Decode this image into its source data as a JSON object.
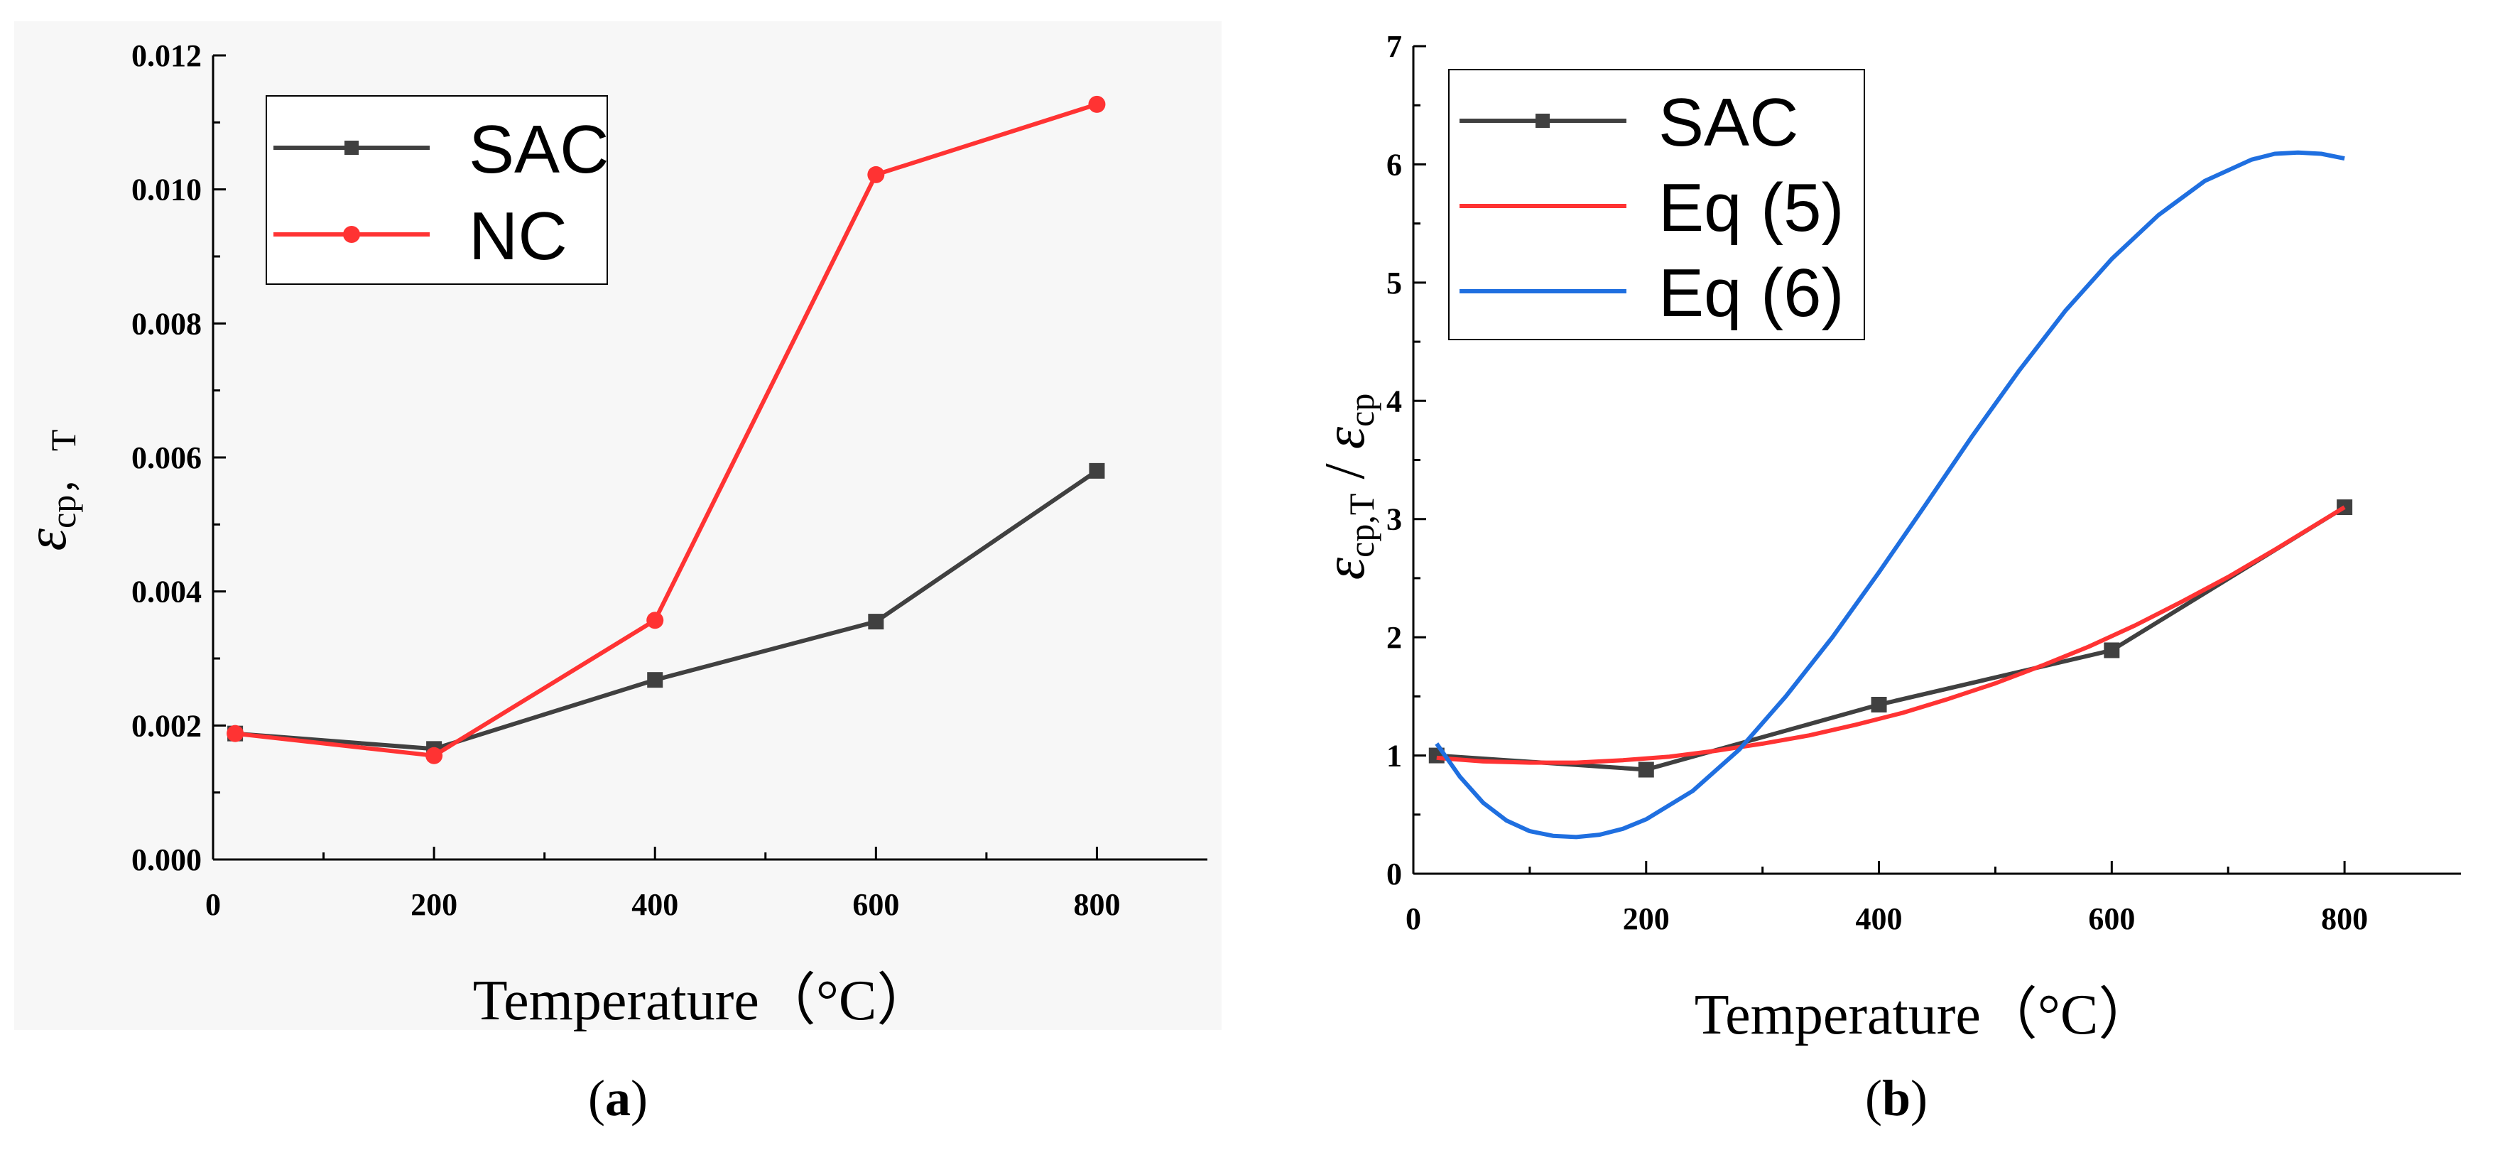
{
  "panels": [
    {
      "caption": {
        "open": "(",
        "letter": "a",
        "close": ")"
      },
      "chart_data": {
        "type": "line",
        "title": "",
        "xlabel": "Temperature（°C）",
        "ylabel_symbol": "ε",
        "ylabel_subscript": "cp， T",
        "xlim": [
          0,
          900
        ],
        "ylim": [
          0,
          0.012
        ],
        "xticks": [
          0,
          200,
          400,
          600,
          800
        ],
        "xtick_labels": [
          "0",
          "200",
          "400",
          "600",
          "800"
        ],
        "yticks": [
          0,
          0.002,
          0.004,
          0.006,
          0.008,
          0.01,
          0.012
        ],
        "ytick_labels": [
          "0.000",
          "0.002",
          "0.004",
          "0.006",
          "0.008",
          "0.010",
          "0.012"
        ],
        "grid": false,
        "legend_position": "top-left",
        "series": [
          {
            "name": "SAC",
            "color": "#404040",
            "marker": "square",
            "x": [
              20,
              200,
              400,
              600,
              800
            ],
            "y": [
              0.00188,
              0.00165,
              0.00268,
              0.00355,
              0.0058
            ]
          },
          {
            "name": "NC",
            "color": "#ff3333",
            "marker": "circle",
            "x": [
              20,
              200,
              400,
              600,
              800
            ],
            "y": [
              0.00188,
              0.00155,
              0.00357,
              0.01022,
              0.01127
            ]
          }
        ]
      }
    },
    {
      "caption": {
        "open": "(",
        "letter": "b",
        "close": ")"
      },
      "chart_data": {
        "type": "line",
        "title": "",
        "xlabel": "Temperature（°C）",
        "ylabel_symbol": "ε",
        "ylabel_subscript": "cp,T",
        "ylabel_sep": " / ",
        "ylabel_symbol2": "ε",
        "ylabel_subscript2": "cp",
        "xlim": [
          0,
          900
        ],
        "ylim": [
          0,
          7
        ],
        "xticks": [
          0,
          200,
          400,
          600,
          800
        ],
        "xtick_labels": [
          "0",
          "200",
          "400",
          "600",
          "800"
        ],
        "yticks": [
          0,
          1,
          2,
          3,
          4,
          5,
          6,
          7
        ],
        "ytick_labels": [
          "0",
          "1",
          "2",
          "3",
          "4",
          "5",
          "6",
          "7"
        ],
        "grid": false,
        "legend_position": "top-left",
        "series": [
          {
            "name": "SAC",
            "color": "#404040",
            "marker": "square",
            "x": [
              20,
              200,
              400,
              600,
              800
            ],
            "y": [
              1.0,
              0.88,
              1.43,
              1.89,
              3.1
            ]
          },
          {
            "name": "Eq (5)",
            "color": "#ff3333",
            "marker": "none",
            "x": [
              20,
              60,
              100,
              140,
              180,
              220,
              260,
              300,
              340,
              380,
              420,
              460,
              500,
              540,
              580,
              620,
              660,
              700,
              740,
              780,
              800
            ],
            "y": [
              0.98,
              0.95,
              0.94,
              0.94,
              0.96,
              0.99,
              1.04,
              1.1,
              1.17,
              1.26,
              1.36,
              1.48,
              1.61,
              1.76,
              1.92,
              2.1,
              2.3,
              2.51,
              2.74,
              2.98,
              3.1
            ]
          },
          {
            "name": "Eq (6)",
            "color": "#1f6fe0",
            "marker": "none",
            "x": [
              20,
              40,
              60,
              80,
              100,
              120,
              140,
              160,
              180,
              200,
              240,
              280,
              320,
              360,
              400,
              440,
              480,
              520,
              560,
              600,
              640,
              680,
              720,
              740,
              760,
              780,
              800
            ],
            "y": [
              1.1,
              0.82,
              0.6,
              0.45,
              0.36,
              0.32,
              0.31,
              0.33,
              0.38,
              0.46,
              0.7,
              1.05,
              1.5,
              2.0,
              2.55,
              3.12,
              3.7,
              4.25,
              4.76,
              5.2,
              5.57,
              5.86,
              6.04,
              6.09,
              6.1,
              6.09,
              6.05
            ]
          }
        ]
      }
    }
  ]
}
